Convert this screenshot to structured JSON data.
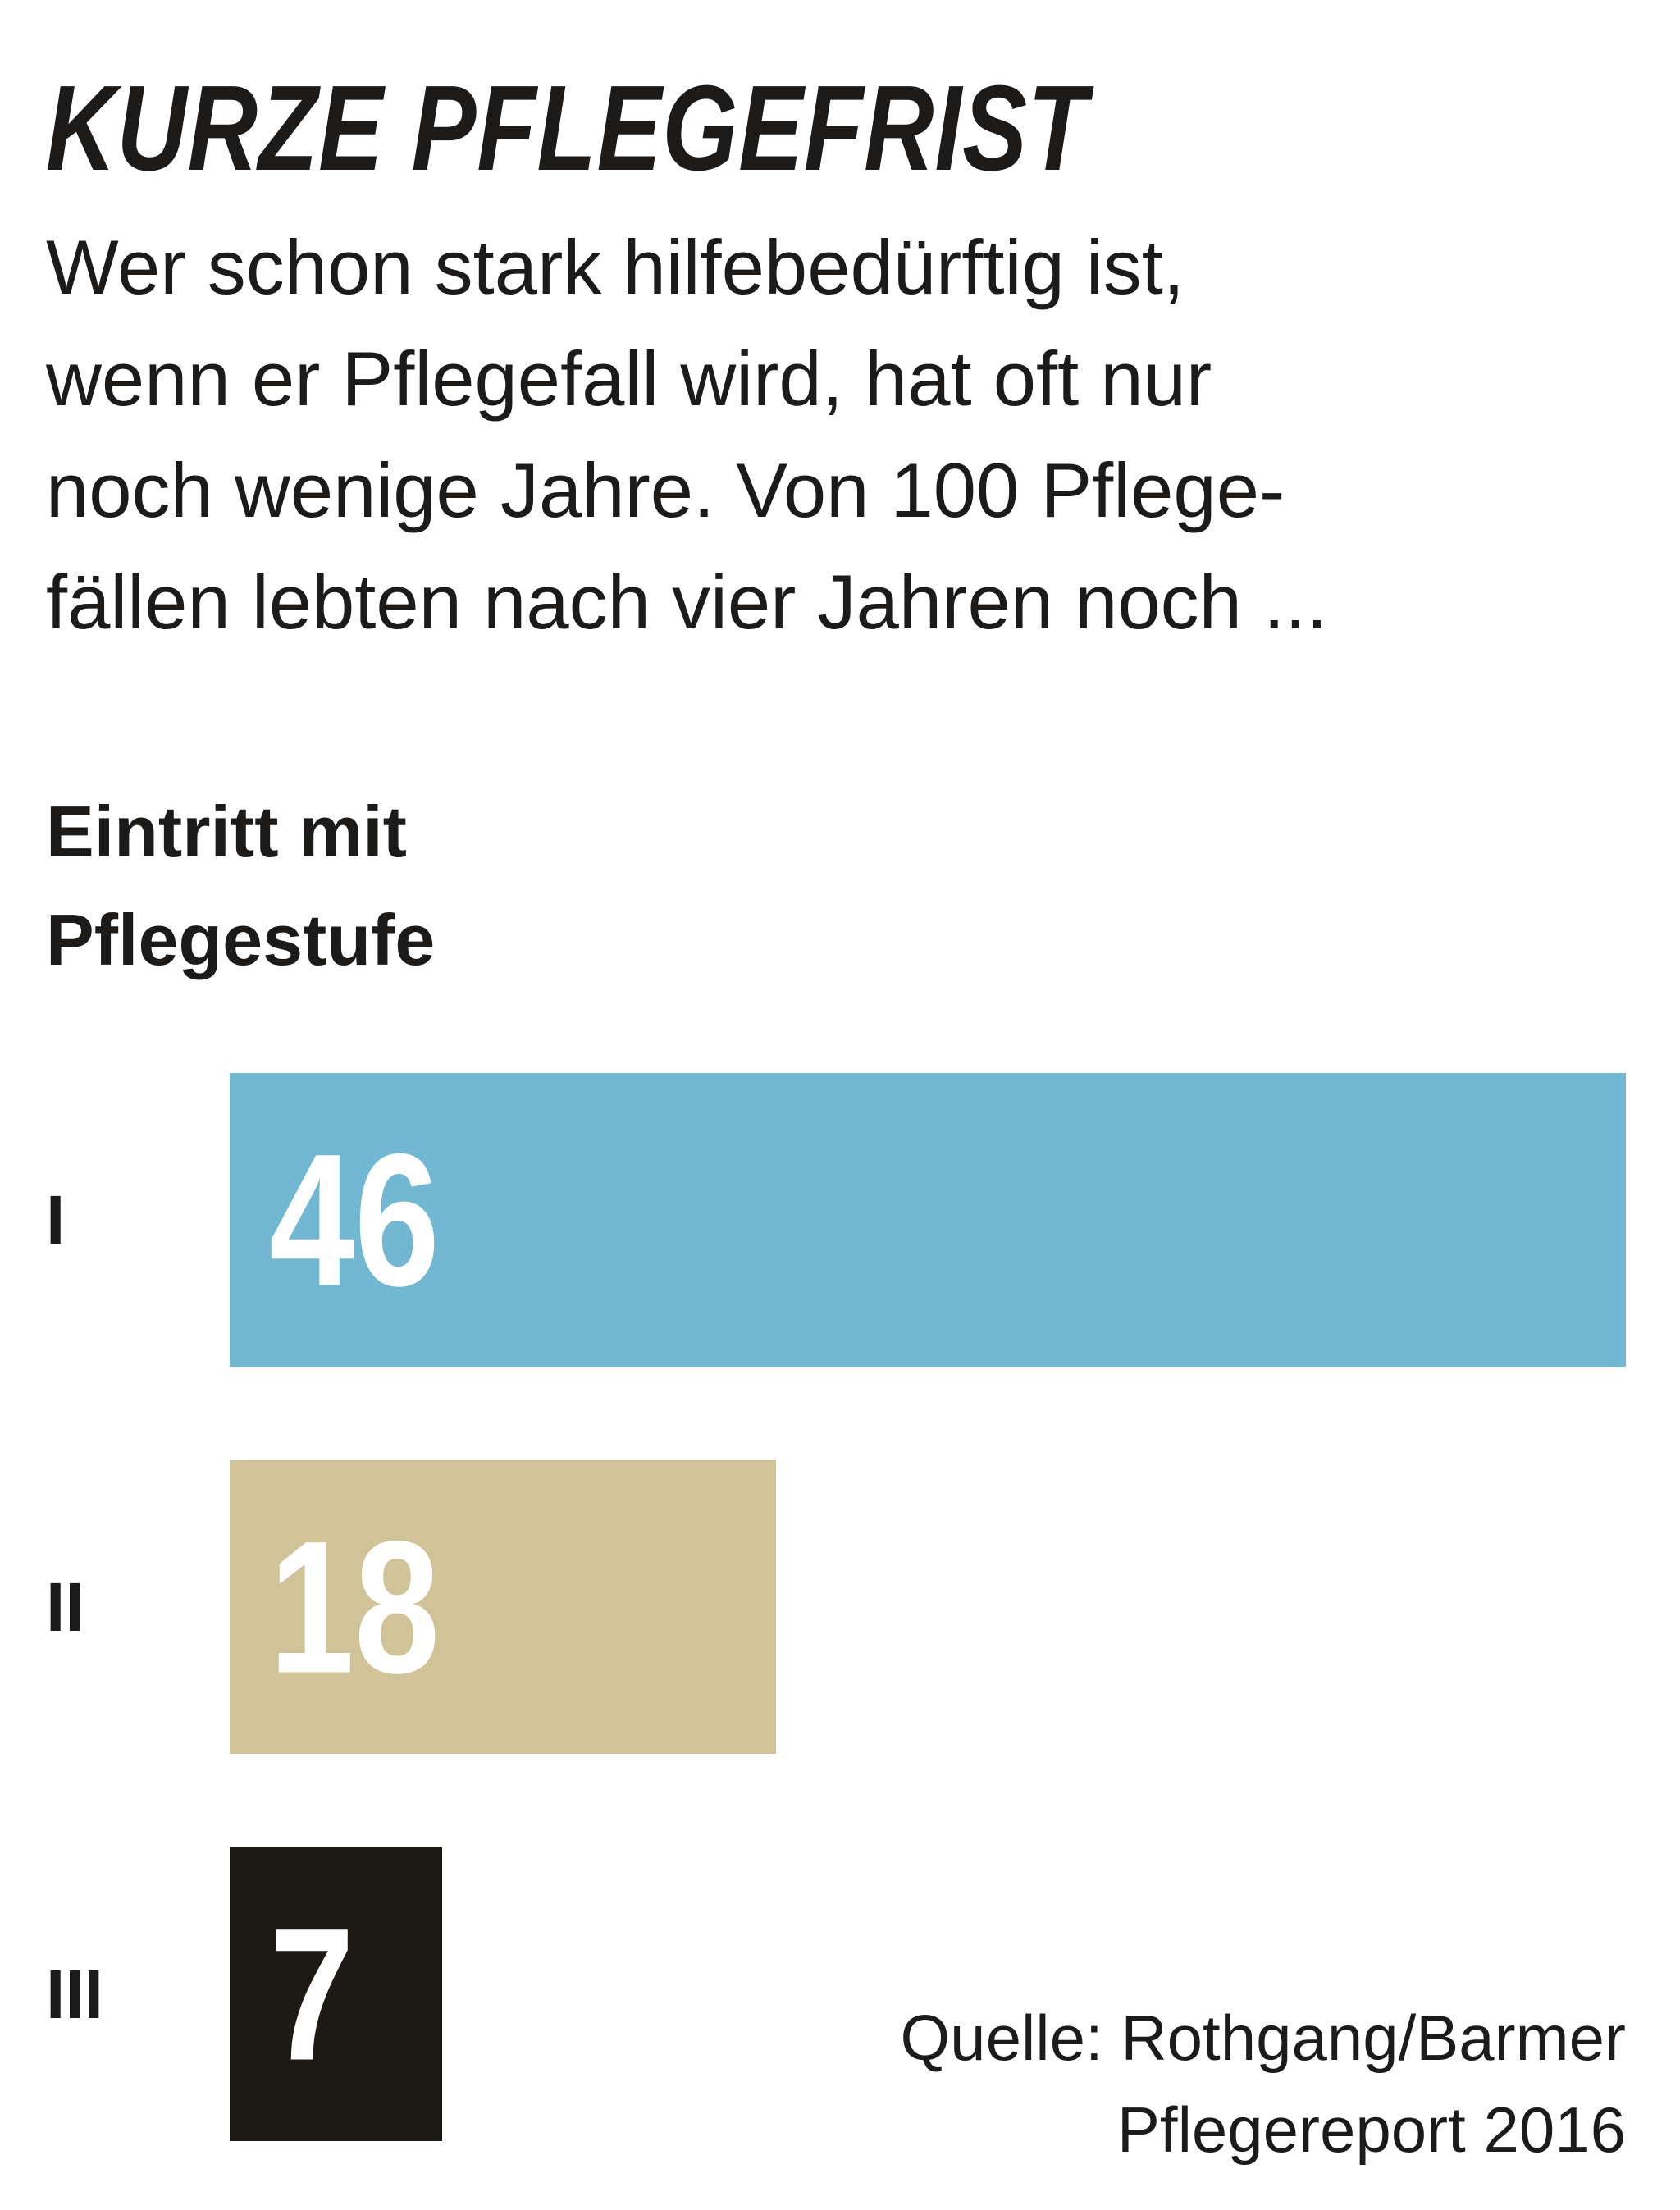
{
  "chart_data": {
    "type": "bar",
    "orientation": "horizontal",
    "title": "KURZE PFLEGEFRIST",
    "subtitle_lines": [
      "Wer schon stark hilfebedürftig ist,",
      "wenn er Pflegefall wird, hat oft nur",
      "noch wenige Jahre. Von 100 Pflege-",
      "fällen lebten nach vier Jahren noch ..."
    ],
    "ylabel_lines": [
      "Eintritt mit",
      "Pflegestufe"
    ],
    "categories": [
      "I",
      "II",
      "III"
    ],
    "values": [
      46,
      18,
      7
    ],
    "value_labels": [
      "46",
      "18",
      "7"
    ],
    "bar_colors": [
      "#73b8d3",
      "#d1c398",
      "#1d1915"
    ],
    "value_label_color": "#ffffff",
    "xlim": [
      0,
      46
    ],
    "grid": false,
    "legend": "none",
    "source_lines": [
      "Quelle: Rothgang/Barmer",
      "Pflegereport 2016"
    ]
  }
}
